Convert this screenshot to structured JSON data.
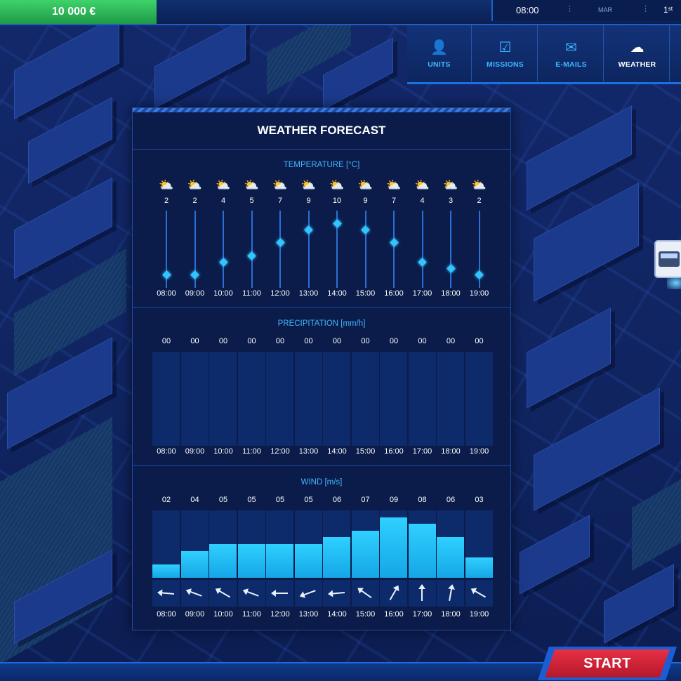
{
  "topbar": {
    "money": "10 000 €",
    "time": "08:00",
    "divider1": "⋮",
    "month": "MAR",
    "divider2": "⋮",
    "rank": "1ˢᵗ"
  },
  "nav": [
    {
      "label": "UNITS",
      "icon": "person-icon",
      "glyph": "👤",
      "active": false
    },
    {
      "label": "MISSIONS",
      "icon": "checkbox-icon",
      "glyph": "☑",
      "active": false
    },
    {
      "label": "E-MAILS",
      "icon": "envelope-icon",
      "glyph": "✉",
      "active": false
    },
    {
      "label": "WEATHER",
      "icon": "cloud-icon",
      "glyph": "☁",
      "active": true
    }
  ],
  "weather": {
    "title": "WEATHER FORECAST",
    "hours": [
      "08:00",
      "09:00",
      "10:00",
      "11:00",
      "12:00",
      "13:00",
      "14:00",
      "15:00",
      "16:00",
      "17:00",
      "18:00",
      "19:00"
    ],
    "temperature": {
      "title": "TEMPERATURE [°C]",
      "icon": "partly-cloudy-icon",
      "glyph": "⛅",
      "values": [
        2,
        2,
        4,
        5,
        7,
        9,
        10,
        9,
        7,
        4,
        3,
        2
      ]
    },
    "precipitation": {
      "title": "PRECIPITATION [mm/h]",
      "values": [
        "00",
        "00",
        "00",
        "00",
        "00",
        "00",
        "00",
        "00",
        "00",
        "00",
        "00",
        "00"
      ]
    },
    "wind": {
      "title": "WIND [m/s]",
      "labels": [
        "02",
        "04",
        "05",
        "05",
        "05",
        "05",
        "06",
        "07",
        "09",
        "08",
        "06",
        "03"
      ],
      "values": [
        2,
        4,
        5,
        5,
        5,
        5,
        6,
        7,
        9,
        8,
        6,
        3
      ],
      "max": 10,
      "direction_deg": [
        185,
        200,
        210,
        200,
        180,
        160,
        175,
        215,
        300,
        270,
        280,
        210
      ]
    }
  },
  "start_button": "START"
}
